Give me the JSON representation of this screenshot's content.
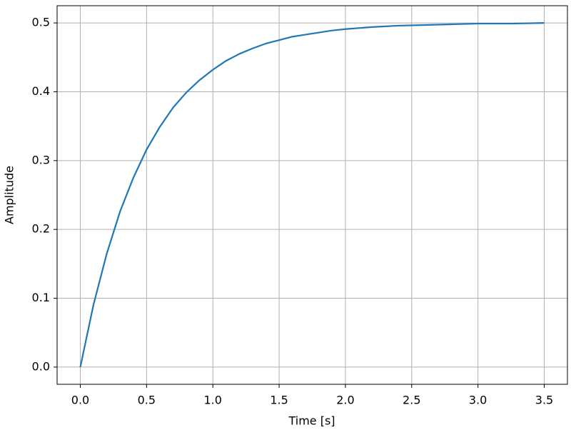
{
  "chart_data": {
    "type": "line",
    "x_label": "Time [s]",
    "y_label": "Amplitude",
    "x": [
      0,
      0.1,
      0.2,
      0.3,
      0.4,
      0.5,
      0.6,
      0.7,
      0.8,
      0.9,
      1.0,
      1.1,
      1.2,
      1.3,
      1.4,
      1.5,
      1.6,
      1.7,
      1.8,
      1.9,
      2.0,
      2.2,
      2.4,
      2.6,
      2.8,
      3.0,
      3.25,
      3.5
    ],
    "values": [
      0,
      0.091,
      0.165,
      0.226,
      0.275,
      0.316,
      0.349,
      0.377,
      0.399,
      0.417,
      0.432,
      0.445,
      0.455,
      0.463,
      0.47,
      0.475,
      0.48,
      0.483,
      0.486,
      0.489,
      0.491,
      0.494,
      0.496,
      0.497,
      0.498,
      0.499,
      0.499,
      0.5
    ],
    "color": "#1f77b4",
    "xlim": [
      -0.175,
      3.675
    ],
    "ylim": [
      -0.025,
      0.525
    ],
    "xticks": [
      {
        "value": 0,
        "label": "0.0"
      },
      0.5,
      {
        "value": 1,
        "label": "1.0"
      },
      1.5,
      {
        "value": 2,
        "label": "2.0"
      },
      2.5,
      {
        "value": 3,
        "label": "3.0"
      },
      3.5
    ],
    "yticks": [
      {
        "value": 0,
        "label": "0.0"
      },
      0.1,
      0.2,
      0.3,
      0.4,
      0.5
    ],
    "grid": true
  }
}
